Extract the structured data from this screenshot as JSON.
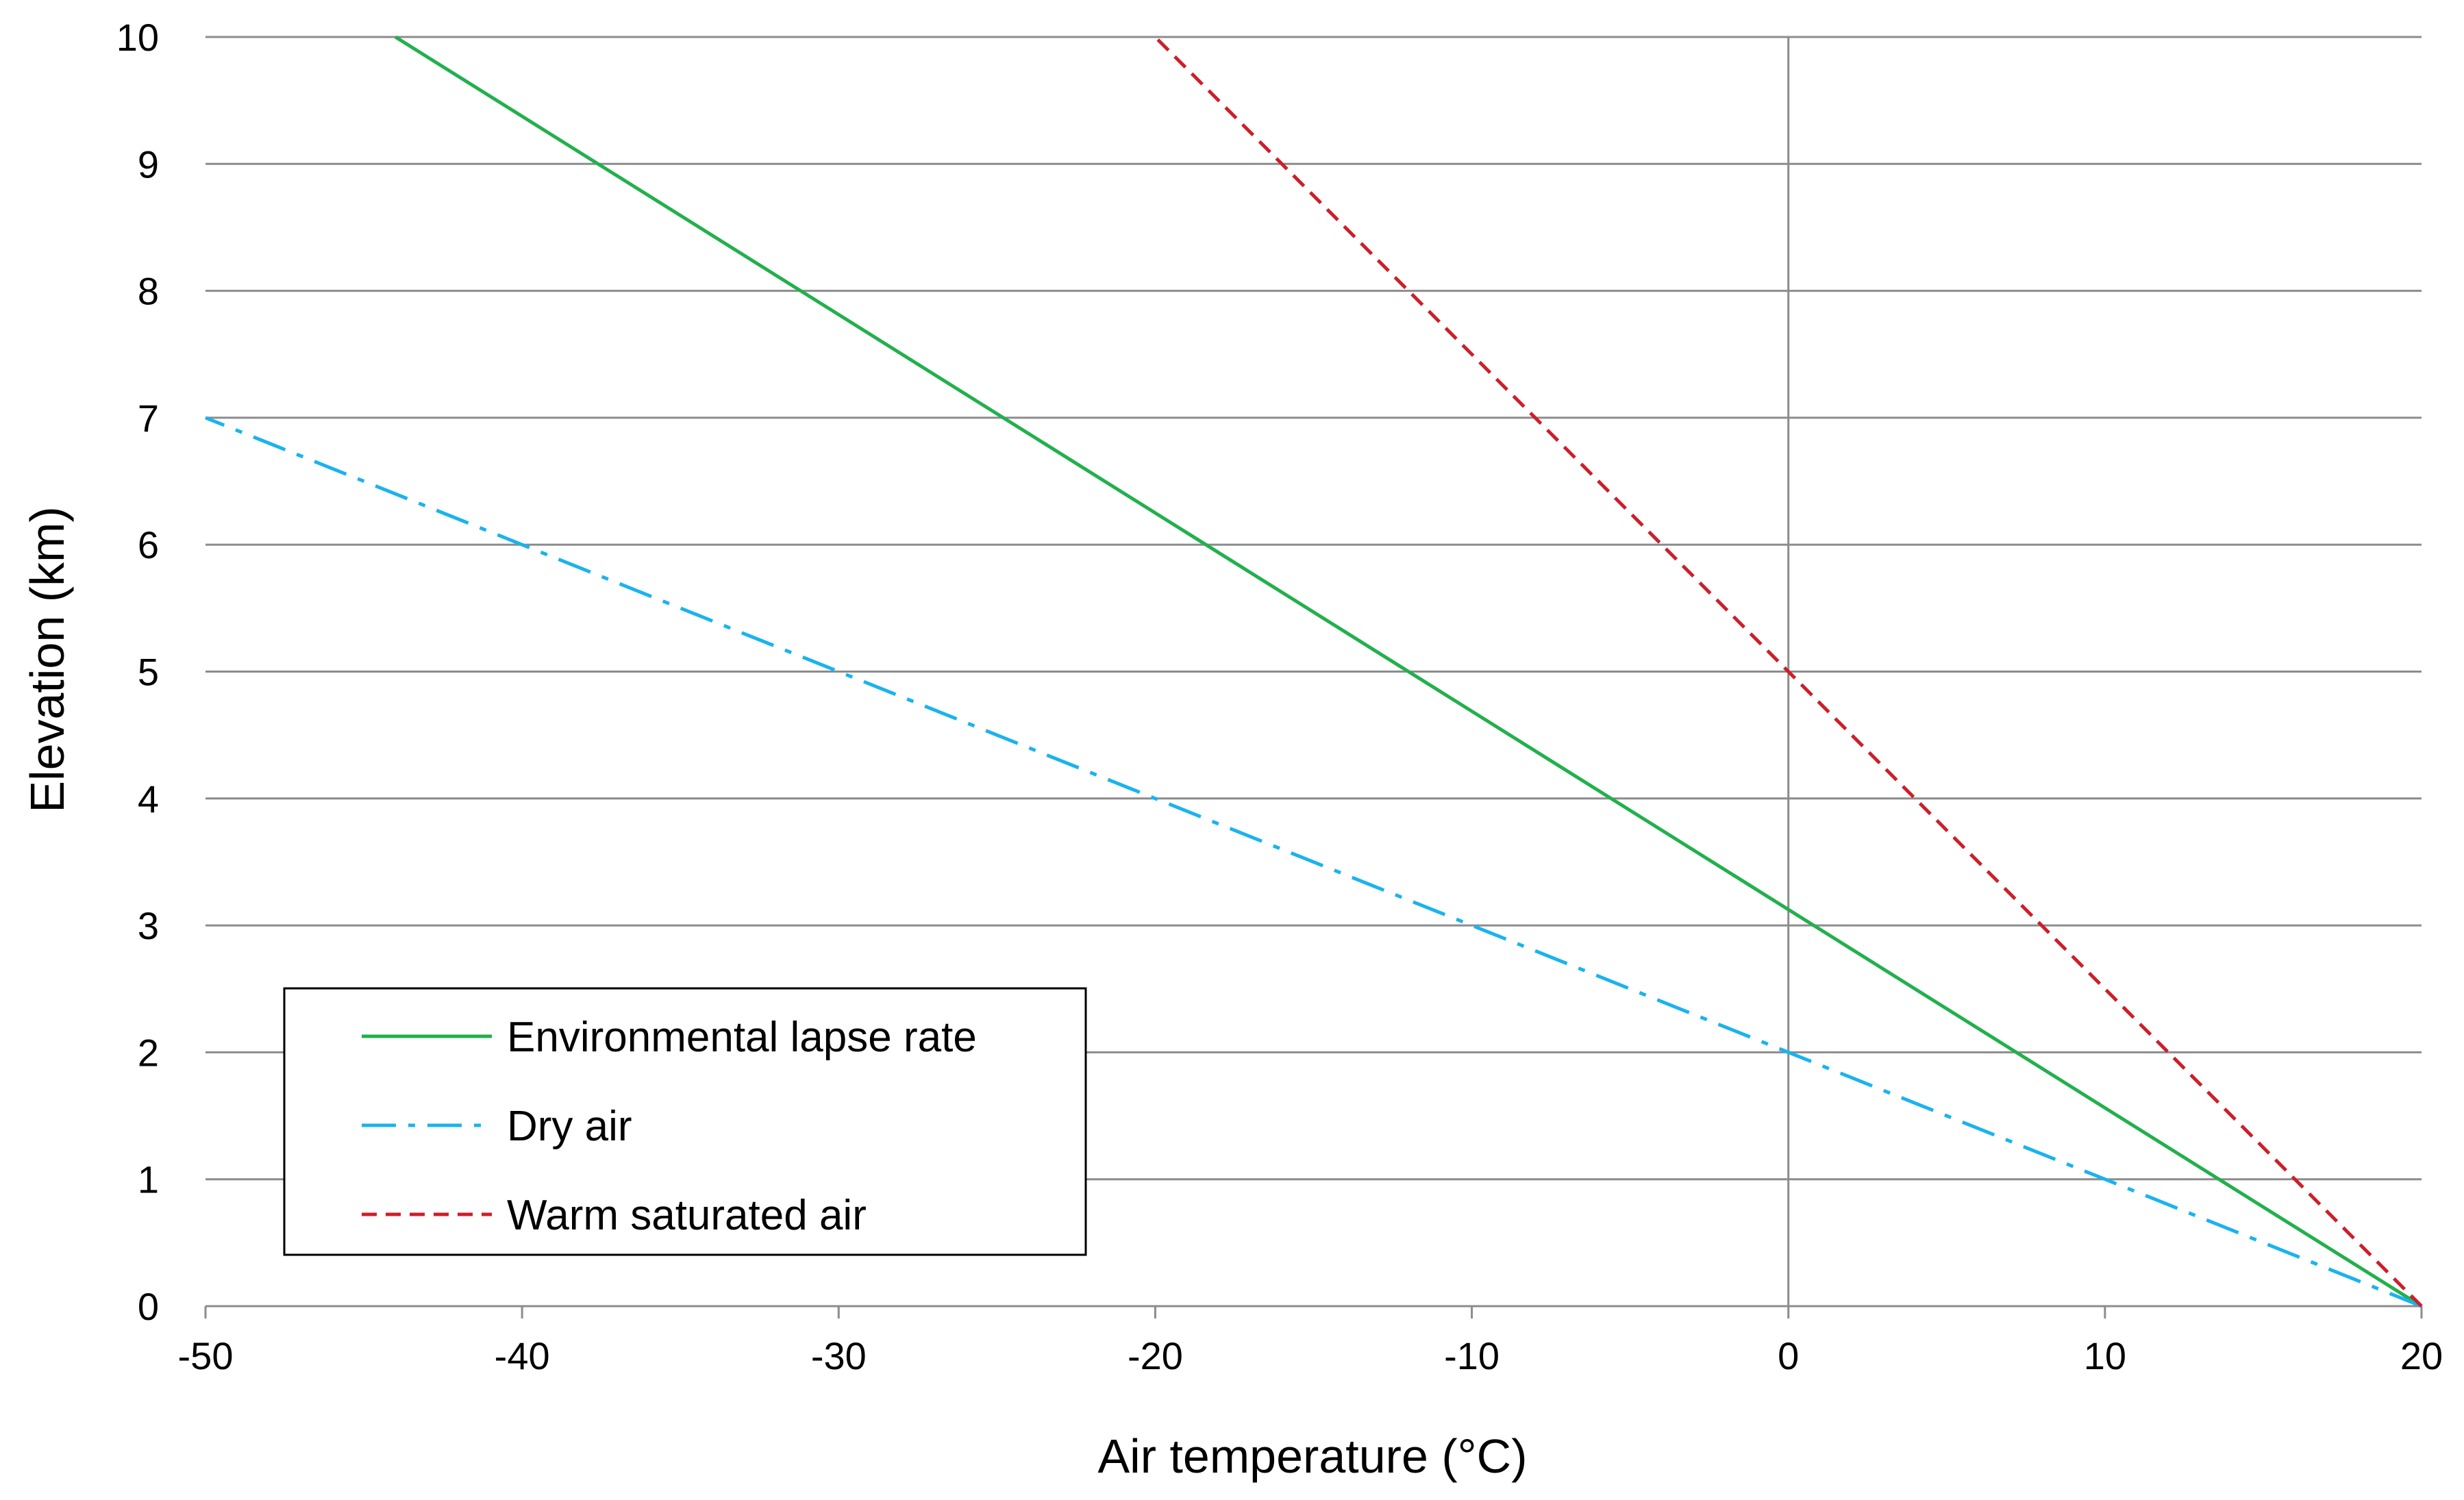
{
  "chart_data": {
    "type": "line",
    "title": "",
    "xlabel": "Air temperature (°C)",
    "ylabel": "Elevation (km)",
    "xlim": [
      -50,
      20
    ],
    "ylim": [
      0,
      10
    ],
    "x_ticks": [
      -50,
      -40,
      -30,
      -20,
      -10,
      0,
      10,
      20
    ],
    "y_ticks": [
      0,
      1,
      2,
      3,
      4,
      5,
      6,
      7,
      8,
      9,
      10
    ],
    "x_tick_labels": [
      "-50",
      "-40",
      "-30",
      "-20",
      "-10",
      "0",
      "10",
      "20"
    ],
    "y_tick_labels": [
      "0",
      "1",
      "2",
      "3",
      "4",
      "5",
      "6",
      "7",
      "8",
      "9",
      "10"
    ],
    "grid": {
      "horizontal": true,
      "vertical": false
    },
    "zero_line_x": 0,
    "legend_position": "bottom-left",
    "series": [
      {
        "name": "Environmental lapse rate",
        "color": "#22b04c",
        "line_style": "solid",
        "points": [
          {
            "x": 20,
            "y": 0
          },
          {
            "x": -44,
            "y": 10
          }
        ]
      },
      {
        "name": "Dry air",
        "color": "#1ab3ee",
        "line_style": "dash-dot",
        "points": [
          {
            "x": 20,
            "y": 0
          },
          {
            "x": -50,
            "y": 7
          }
        ]
      },
      {
        "name": "Warm saturated air",
        "color": "#cc1f2a",
        "line_style": "dashed",
        "points": [
          {
            "x": 20,
            "y": 0
          },
          {
            "x": -20,
            "y": 10
          }
        ]
      }
    ]
  }
}
